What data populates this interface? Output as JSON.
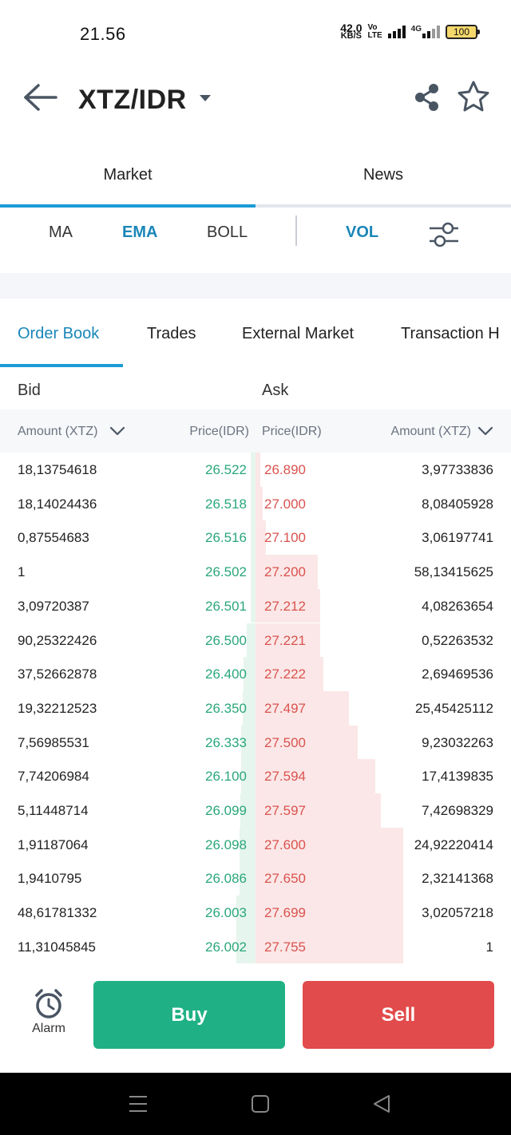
{
  "status_bar": {
    "time": "21.56",
    "net_speed_value": "42.0",
    "net_speed_unit": "KB/S",
    "volte_top": "Vo",
    "volte_bottom": "LTE",
    "network_type": "4G",
    "battery": "100"
  },
  "header": {
    "pair": "XTZ/IDR"
  },
  "main_tabs": [
    {
      "label": "Market",
      "active": true
    },
    {
      "label": "News",
      "active": false
    }
  ],
  "indicators": {
    "ma": "MA",
    "ema": "EMA",
    "boll": "BOLL",
    "vol": "VOL"
  },
  "sub_tabs": [
    {
      "label": "Order Book",
      "active": true
    },
    {
      "label": "Trades",
      "active": false
    },
    {
      "label": "External Market",
      "active": false
    },
    {
      "label": "Transaction H",
      "active": false
    }
  ],
  "order_book": {
    "bid_label": "Bid",
    "ask_label": "Ask",
    "columns": {
      "bid_amount": "Amount (XTZ)",
      "bid_price": "Price(IDR)",
      "ask_price": "Price(IDR)",
      "ask_amount": "Amount (XTZ)"
    },
    "rows": [
      {
        "bid_amount": "18,13754618",
        "bid_price": "26.522",
        "ask_price": "26.890",
        "ask_amount": "3,97733836",
        "bid_depth": 0.02,
        "ask_depth": 0.02
      },
      {
        "bid_amount": "18,14024436",
        "bid_price": "26.518",
        "ask_price": "27.000",
        "ask_amount": "8,08405928",
        "bid_depth": 0.03,
        "ask_depth": 0.05
      },
      {
        "bid_amount": "0,87554683",
        "bid_price": "26.516",
        "ask_price": "27.100",
        "ask_amount": "3,06197741",
        "bid_depth": 0.03,
        "ask_depth": 0.07
      },
      {
        "bid_amount": "1",
        "bid_price": "26.502",
        "ask_price": "27.200",
        "ask_amount": "58,13415625",
        "bid_depth": 0.03,
        "ask_depth": 0.42
      },
      {
        "bid_amount": "3,09720387",
        "bid_price": "26.501",
        "ask_price": "27.212",
        "ask_amount": "4,08263654",
        "bid_depth": 0.04,
        "ask_depth": 0.44
      },
      {
        "bid_amount": "90,25322426",
        "bid_price": "26.500",
        "ask_price": "27.221",
        "ask_amount": "0,52263532",
        "bid_depth": 0.17,
        "ask_depth": 0.44
      },
      {
        "bid_amount": "37,52662878",
        "bid_price": "26.400",
        "ask_price": "27.222",
        "ask_amount": "2,69469536",
        "bid_depth": 0.22,
        "ask_depth": 0.46
      },
      {
        "bid_amount": "19,32212523",
        "bid_price": "26.350",
        "ask_price": "27.497",
        "ask_amount": "25,45425112",
        "bid_depth": 0.25,
        "ask_depth": 0.63
      },
      {
        "bid_amount": "7,56985531",
        "bid_price": "26.333",
        "ask_price": "27.500",
        "ask_amount": "9,23032263",
        "bid_depth": 0.27,
        "ask_depth": 0.69
      },
      {
        "bid_amount": "7,74206984",
        "bid_price": "26.100",
        "ask_price": "27.594",
        "ask_amount": "17,4139835",
        "bid_depth": 0.28,
        "ask_depth": 0.81
      },
      {
        "bid_amount": "5,11448714",
        "bid_price": "26.099",
        "ask_price": "27.597",
        "ask_amount": "7,42698329",
        "bid_depth": 0.29,
        "ask_depth": 0.85
      },
      {
        "bid_amount": "1,91187064",
        "bid_price": "26.098",
        "ask_price": "27.600",
        "ask_amount": "24,92220414",
        "bid_depth": 0.3,
        "ask_depth": 1.0
      },
      {
        "bid_amount": "1,9410795",
        "bid_price": "26.086",
        "ask_price": "27.650",
        "ask_amount": "2,32141368",
        "bid_depth": 0.3,
        "ask_depth": 1.0
      },
      {
        "bid_amount": "48,61781332",
        "bid_price": "26.003",
        "ask_price": "27.699",
        "ask_amount": "3,02057218",
        "bid_depth": 0.36,
        "ask_depth": 1.0
      },
      {
        "bid_amount": "11,31045845",
        "bid_price": "26.002",
        "ask_price": "27.755",
        "ask_amount": "1",
        "bid_depth": 0.36,
        "ask_depth": 1.0
      }
    ]
  },
  "bottom": {
    "alarm_label": "Alarm",
    "buy_label": "Buy",
    "sell_label": "Sell"
  },
  "colors": {
    "accent": "#1b9bd7",
    "buy": "#1fb185",
    "sell": "#e24b4b",
    "bid_text": "#2aa77a",
    "ask_text": "#d9534f"
  },
  "icons": [
    "back-arrow-icon",
    "caret-down-icon",
    "share-icon",
    "star-icon",
    "filter-sliders-icon",
    "chevron-down-icon",
    "alarm-clock-icon",
    "menu-icon",
    "home-square-icon",
    "back-triangle-icon"
  ]
}
